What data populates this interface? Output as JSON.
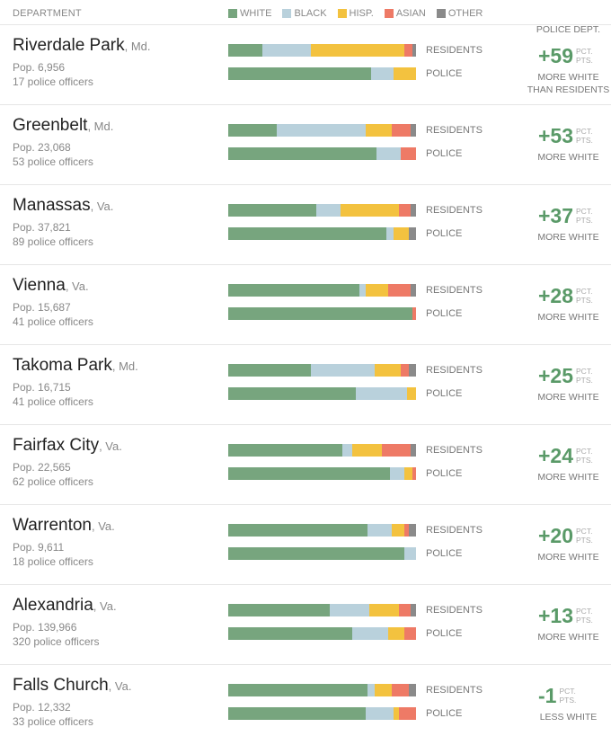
{
  "header": {
    "department": "DEPARTMENT",
    "police_dept": "POLICE DEPT."
  },
  "legend": [
    {
      "label": "WHITE",
      "color": "#77a57e"
    },
    {
      "label": "BLACK",
      "color": "#b9d1dc"
    },
    {
      "label": "HISP.",
      "color": "#f3c23f"
    },
    {
      "label": "ASIAN",
      "color": "#ee7a66"
    },
    {
      "label": "OTHER",
      "color": "#8a8a8a"
    }
  ],
  "bar_labels": {
    "residents": "RESIDENTS",
    "police": "POLICE"
  },
  "chart_data": {
    "type": "bar",
    "stacked": true,
    "orientation": "horizontal",
    "series_order": [
      "WHITE",
      "BLACK",
      "HISP.",
      "ASIAN",
      "OTHER"
    ],
    "units": "percent share",
    "rows": [
      {
        "city": "Riverdale Park",
        "state": ", Md.",
        "population": "Pop. 6,956",
        "officers": "17 police officers",
        "residents": [
          18,
          26,
          50,
          4,
          2
        ],
        "police": [
          76,
          12,
          12,
          0,
          0
        ],
        "diff": "+59",
        "desc": [
          "MORE WHITE",
          "THAN RESIDENTS"
        ]
      },
      {
        "city": "Greenbelt",
        "state": ", Md.",
        "population": "Pop. 23,068",
        "officers": "53 police officers",
        "residents": [
          26,
          47,
          14,
          10,
          3
        ],
        "police": [
          79,
          13,
          0,
          8,
          0
        ],
        "diff": "+53",
        "desc": [
          "MORE WHITE"
        ]
      },
      {
        "city": "Manassas",
        "state": ", Va.",
        "population": "Pop. 37,821",
        "officers": "89 police officers",
        "residents": [
          47,
          13,
          31,
          6,
          3
        ],
        "police": [
          84,
          4,
          8,
          0,
          4
        ],
        "diff": "+37",
        "desc": [
          "MORE WHITE"
        ]
      },
      {
        "city": "Vienna",
        "state": ", Va.",
        "population": "Pop. 15,687",
        "officers": "41 police officers",
        "residents": [
          70,
          3,
          12,
          12,
          3
        ],
        "police": [
          98,
          0,
          0,
          2,
          0
        ],
        "diff": "+28",
        "desc": [
          "MORE WHITE"
        ]
      },
      {
        "city": "Takoma Park",
        "state": ", Md.",
        "population": "Pop. 16,715",
        "officers": "41 police officers",
        "residents": [
          44,
          34,
          14,
          4,
          4
        ],
        "police": [
          68,
          27,
          5,
          0,
          0
        ],
        "diff": "+25",
        "desc": [
          "MORE WHITE"
        ]
      },
      {
        "city": "Fairfax City",
        "state": ", Va.",
        "population": "Pop. 22,565",
        "officers": "62 police officers",
        "residents": [
          61,
          5,
          16,
          15,
          3
        ],
        "police": [
          86,
          8,
          4,
          2,
          0
        ],
        "diff": "+24",
        "desc": [
          "MORE WHITE"
        ]
      },
      {
        "city": "Warrenton",
        "state": ", Va.",
        "population": "Pop. 9,611",
        "officers": "18 police officers",
        "residents": [
          74,
          13,
          7,
          2,
          4
        ],
        "police": [
          94,
          6,
          0,
          0,
          0
        ],
        "diff": "+20",
        "desc": [
          "MORE WHITE"
        ]
      },
      {
        "city": "Alexandria",
        "state": ", Va.",
        "population": "Pop. 139,966",
        "officers": "320 police officers",
        "residents": [
          54,
          21,
          16,
          6,
          3
        ],
        "police": [
          66,
          19,
          9,
          6,
          0
        ],
        "diff": "+13",
        "desc": [
          "MORE WHITE"
        ]
      },
      {
        "city": "Falls Church",
        "state": ", Va.",
        "population": "Pop. 12,332",
        "officers": "33 police officers",
        "residents": [
          74,
          4,
          9,
          9,
          4
        ],
        "police": [
          73,
          15,
          3,
          9,
          0
        ],
        "diff": "-1",
        "desc": [
          "LESS WHITE"
        ]
      }
    ]
  },
  "unit_label": {
    "line1": "PCT.",
    "line2": "PTS."
  }
}
